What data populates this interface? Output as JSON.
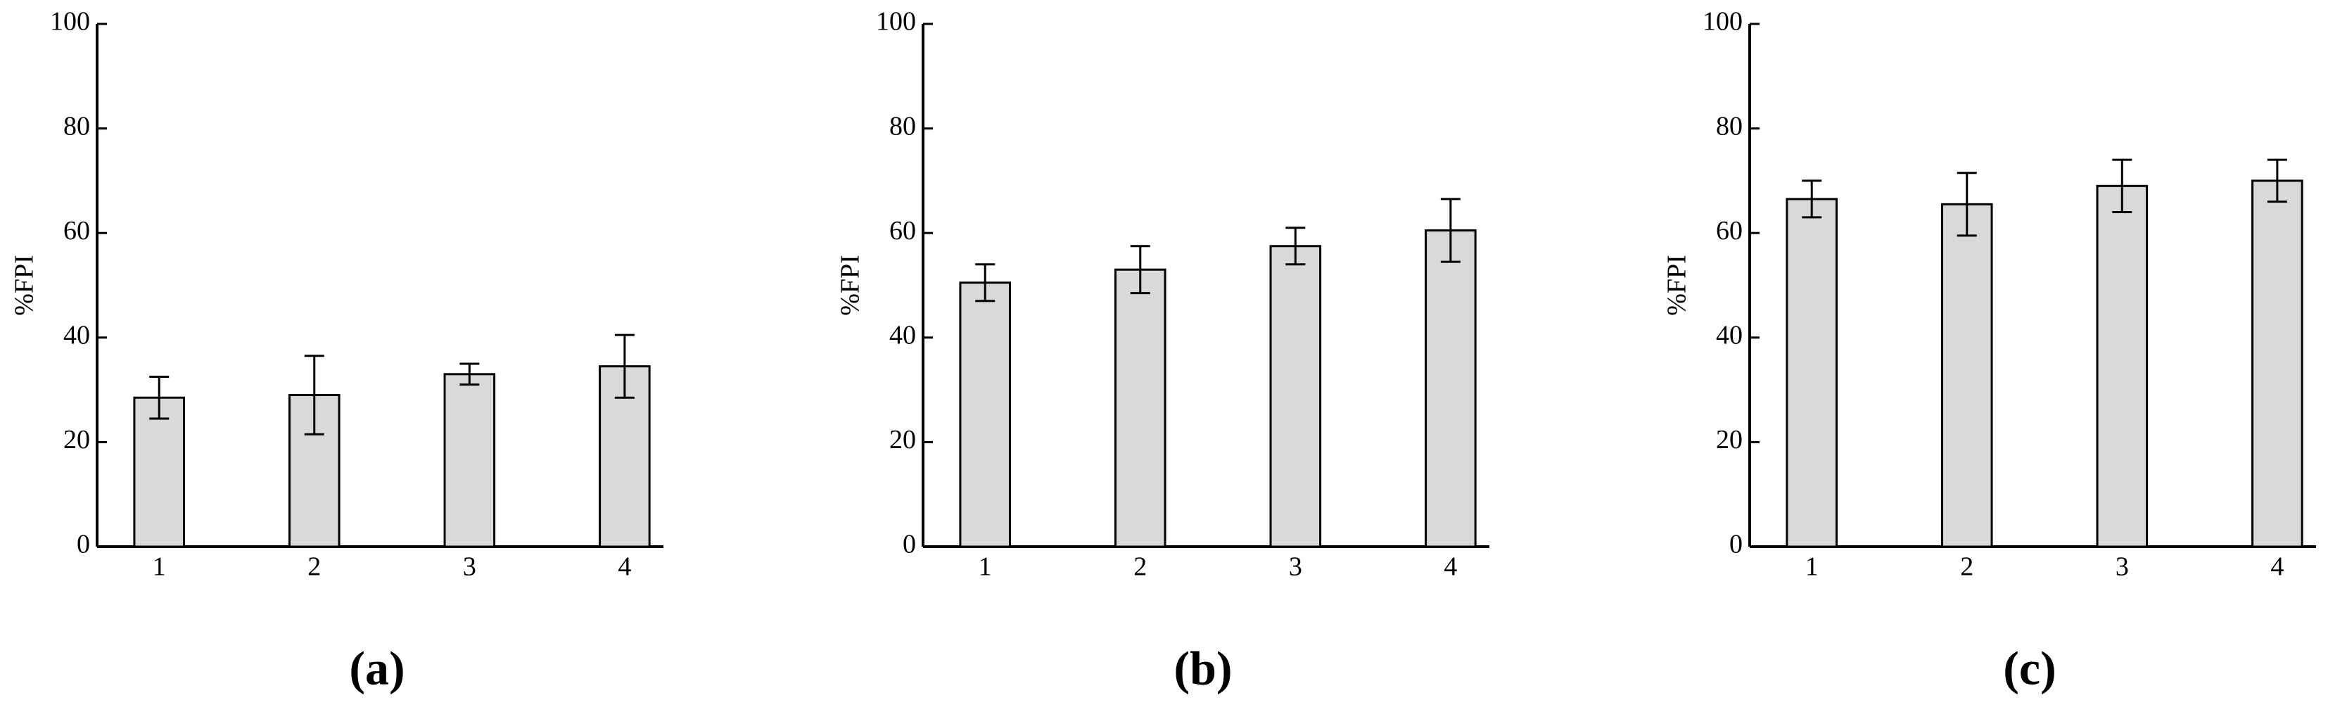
{
  "chart_data": [
    {
      "type": "bar",
      "caption": "(a)",
      "ylabel": "%FPI",
      "categories": [
        "1",
        "2",
        "3",
        "4"
      ],
      "values": [
        28.5,
        29,
        33,
        34.5
      ],
      "errors": [
        4,
        7.5,
        2,
        6
      ],
      "color": "#d9d9d9",
      "ylim": [
        0,
        100
      ],
      "yticks": [
        0,
        20,
        40,
        60,
        80,
        100
      ]
    },
    {
      "type": "bar",
      "caption": "(b)",
      "ylabel": "%FPI",
      "categories": [
        "1",
        "2",
        "3",
        "4"
      ],
      "values": [
        50.5,
        53,
        57.5,
        60.5
      ],
      "errors": [
        3.5,
        4.5,
        3.5,
        6
      ],
      "color": "#d9d9d9",
      "ylim": [
        0,
        100
      ],
      "yticks": [
        0,
        20,
        40,
        60,
        80,
        100
      ]
    },
    {
      "type": "bar",
      "caption": "(c)",
      "ylabel": "%FPI",
      "categories": [
        "1",
        "2",
        "3",
        "4"
      ],
      "values": [
        66.5,
        65.5,
        69,
        70
      ],
      "errors": [
        3.5,
        6,
        5,
        4
      ],
      "color": "#d9d9d9",
      "ylim": [
        0,
        100
      ],
      "yticks": [
        0,
        20,
        40,
        60,
        80,
        100
      ]
    }
  ]
}
